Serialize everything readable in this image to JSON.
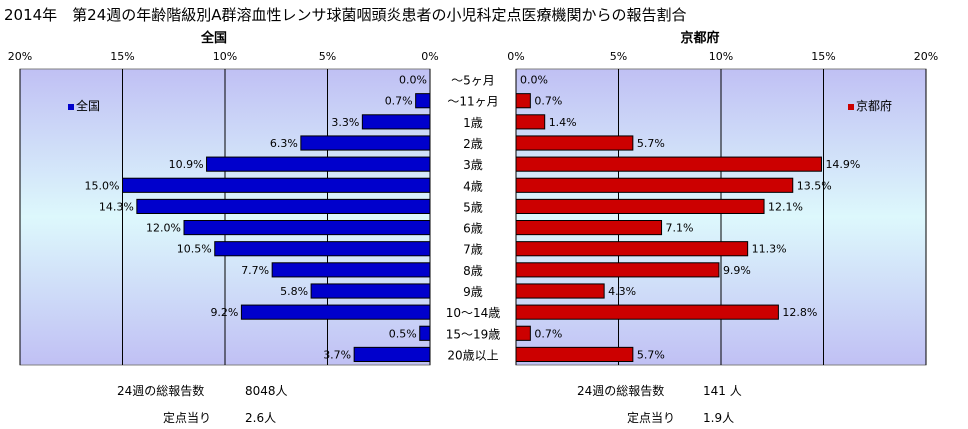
{
  "title": "2014年　第24週の年齢階級別A群溶血性レンサ球菌咽頭炎患者の小児科定点医療機関からの報告割合",
  "chart_data": [
    {
      "type": "bar",
      "orientation": "horizontal-reversed",
      "panel_title": "全国",
      "legend": "全国",
      "legend_position": "top-left",
      "color": "#0000cc",
      "xlim": [
        0,
        20
      ],
      "xticks": [
        "20%",
        "15%",
        "10%",
        "5%",
        "0%"
      ],
      "categories": [
        "～5ヶ月",
        "～11ヶ月",
        "1歳",
        "2歳",
        "3歳",
        "4歳",
        "5歳",
        "6歳",
        "7歳",
        "8歳",
        "9歳",
        "10～14歳",
        "15～19歳",
        "20歳以上"
      ],
      "values": [
        0.0,
        0.7,
        3.3,
        6.3,
        10.9,
        15.0,
        14.3,
        12.0,
        10.5,
        7.7,
        5.8,
        9.2,
        0.5,
        3.7
      ],
      "value_labels": [
        "0.0%",
        "0.7%",
        "3.3%",
        "6.3%",
        "10.9%",
        "15.0%",
        "14.3%",
        "12.0%",
        "10.5%",
        "7.7%",
        "5.8%",
        "9.2%",
        "0.5%",
        "3.7%"
      ]
    },
    {
      "type": "bar",
      "orientation": "horizontal",
      "panel_title": "京都府",
      "legend": "京都府",
      "legend_position": "top-right",
      "color": "#cc0000",
      "xlim": [
        0,
        20
      ],
      "xticks": [
        "0%",
        "5%",
        "10%",
        "15%",
        "20%"
      ],
      "categories": [
        "～5ヶ月",
        "～11ヶ月",
        "1歳",
        "2歳",
        "3歳",
        "4歳",
        "5歳",
        "6歳",
        "7歳",
        "8歳",
        "9歳",
        "10～14歳",
        "15～19歳",
        "20歳以上"
      ],
      "values": [
        0.0,
        0.7,
        1.4,
        5.7,
        14.9,
        13.5,
        12.1,
        7.1,
        11.3,
        9.9,
        4.3,
        12.8,
        0.7,
        5.7
      ],
      "value_labels": [
        "0.0%",
        "0.7%",
        "1.4%",
        "5.7%",
        "14.9%",
        "13.5%",
        "12.1%",
        "7.1%",
        "11.3%",
        "9.9%",
        "4.3%",
        "12.8%",
        "0.7%",
        "5.7%"
      ]
    }
  ],
  "footer": {
    "national_total_label": "24週の総報告数",
    "national_total_value": "8048人",
    "national_per_label": "定点当り",
    "national_per_value": "2.6人",
    "kyoto_total_label": "24週の総報告数",
    "kyoto_total_value": "141 人",
    "kyoto_per_label": "定点当り",
    "kyoto_per_value": "1.9人"
  }
}
